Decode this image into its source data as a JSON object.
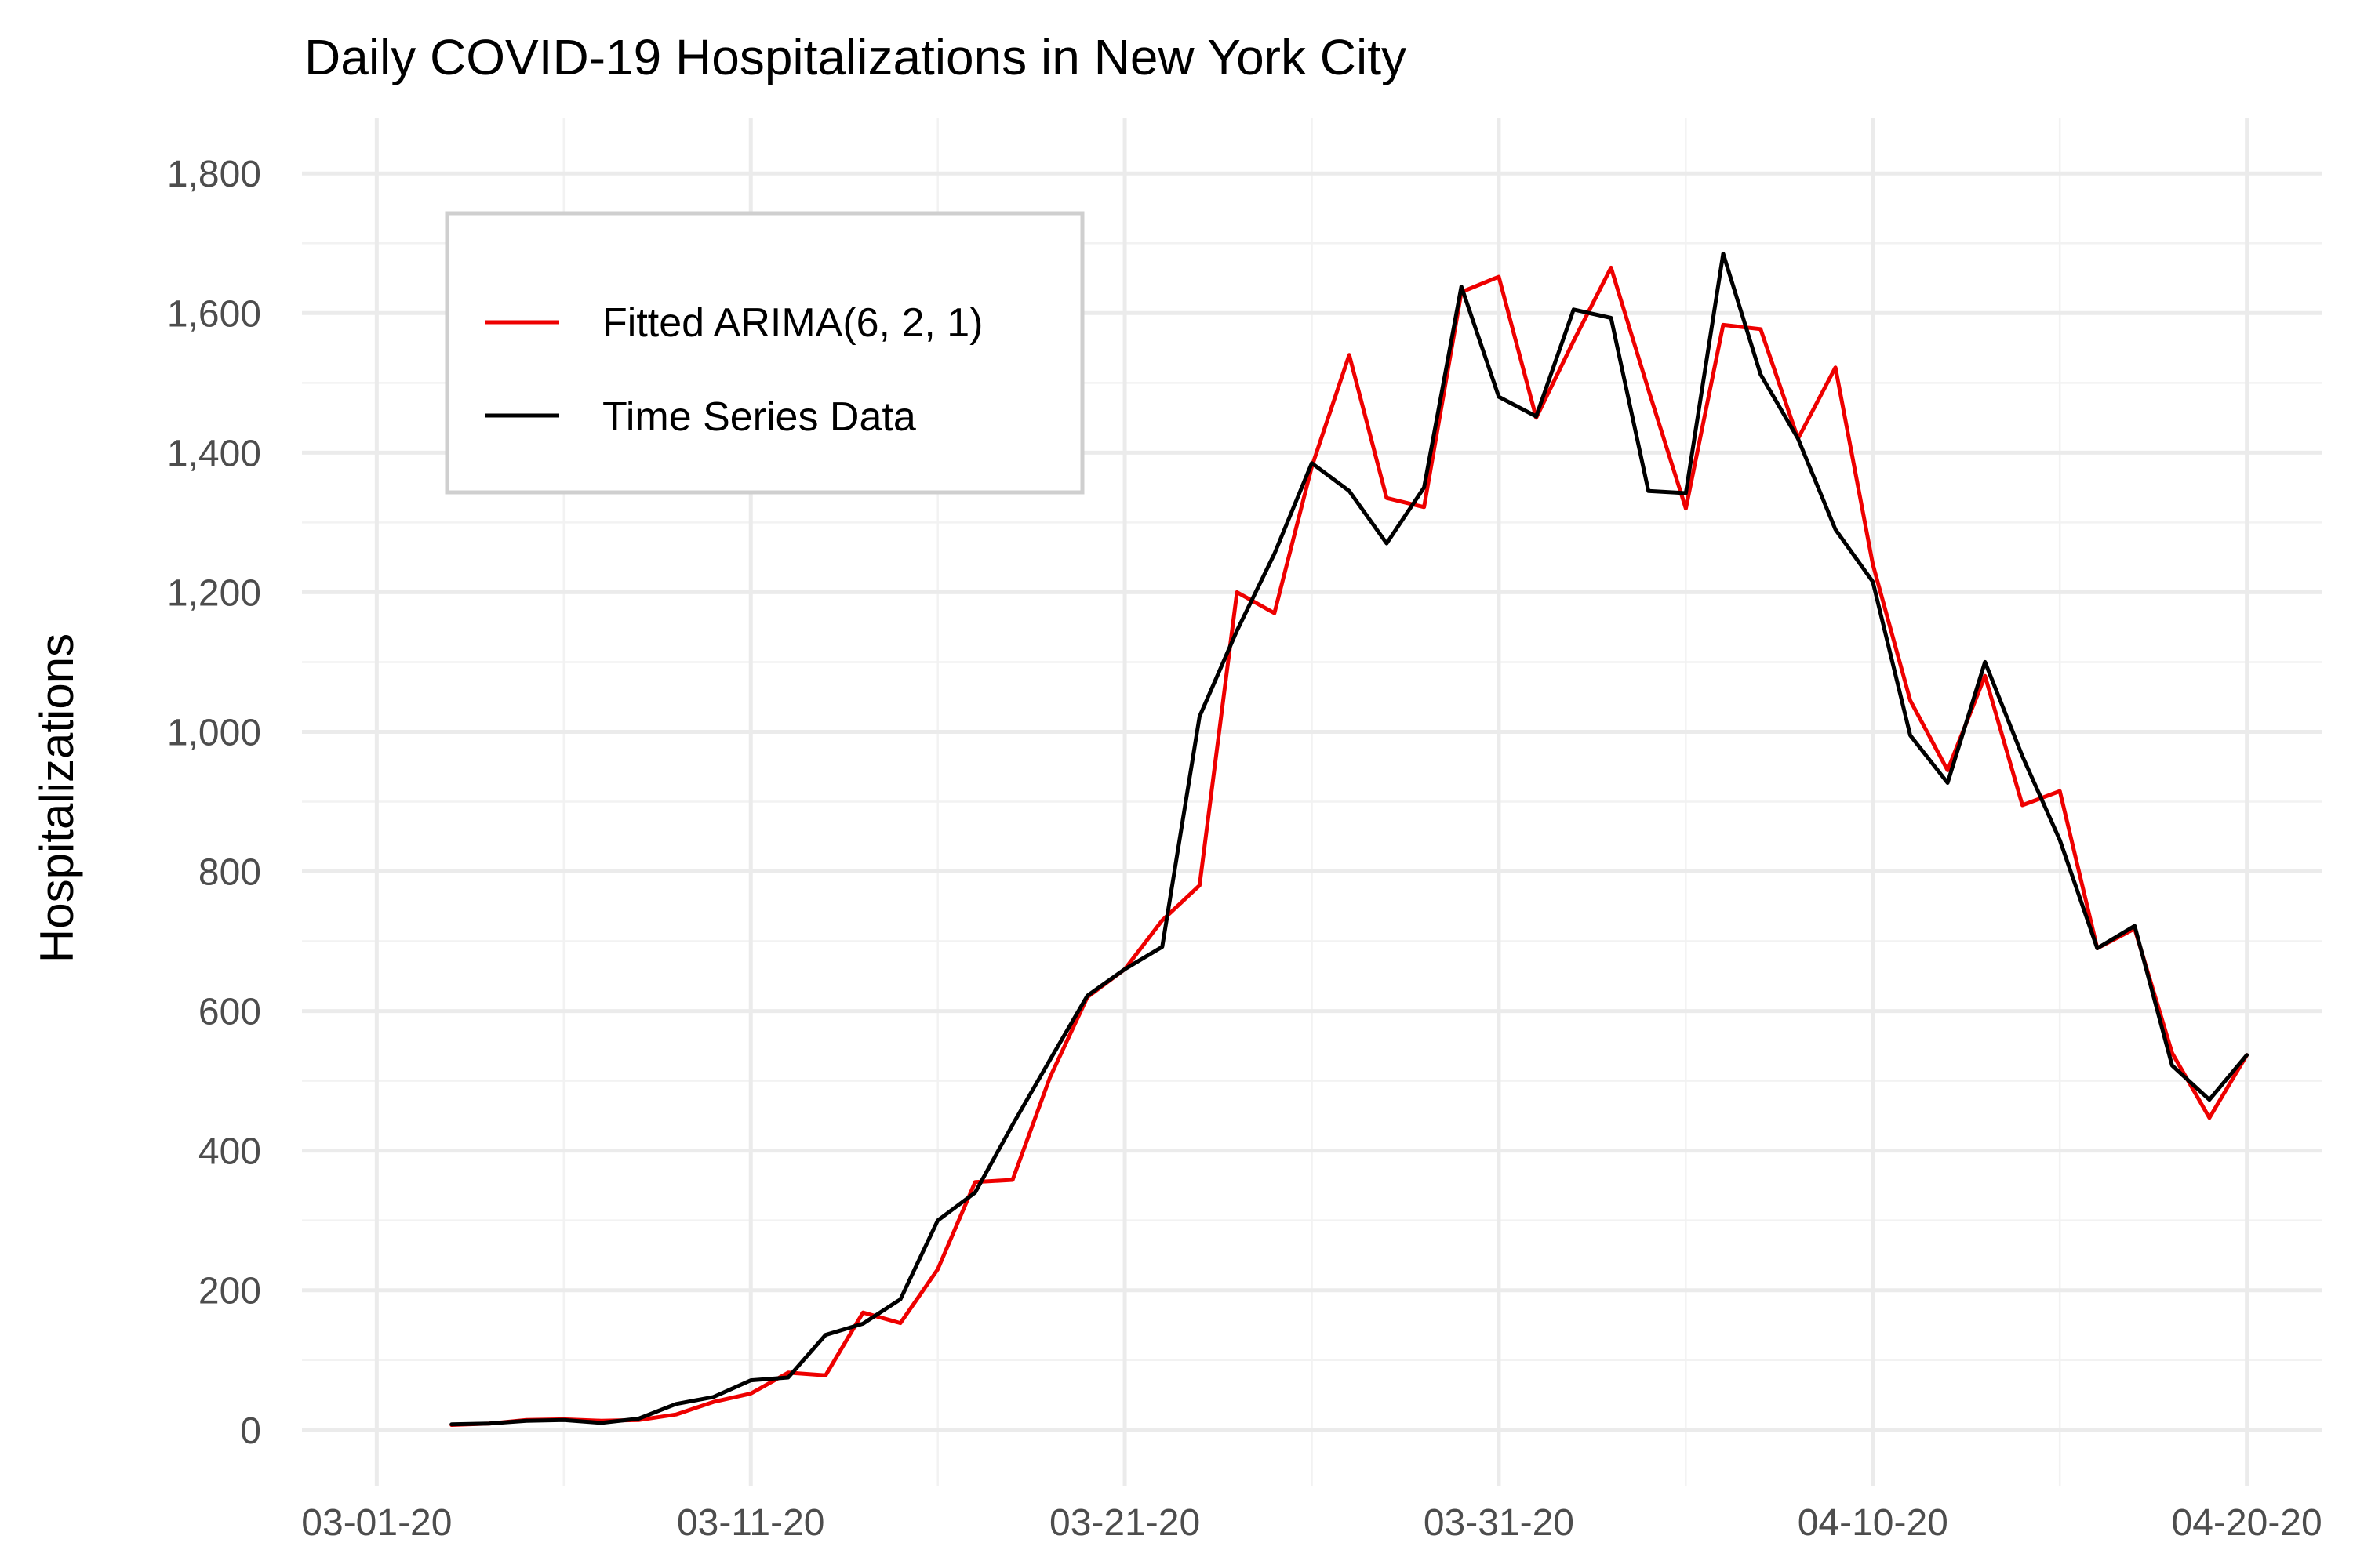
{
  "chart_data": {
    "type": "line",
    "title": "Daily COVID-19 Hospitalizations in New York City",
    "xlabel": "",
    "ylabel": "Hospitalizations",
    "x_start": "2020-02-28",
    "x_end": "2020-04-22",
    "ylim": [
      -80,
      1880
    ],
    "x_ticks": [
      {
        "date": "2020-03-01",
        "label": "03-01-20"
      },
      {
        "date": "2020-03-11",
        "label": "03-11-20"
      },
      {
        "date": "2020-03-21",
        "label": "03-21-20"
      },
      {
        "date": "2020-03-31",
        "label": "03-31-20"
      },
      {
        "date": "2020-04-10",
        "label": "04-10-20"
      },
      {
        "date": "2020-04-20",
        "label": "04-20-20"
      }
    ],
    "y_ticks": [
      {
        "value": 0,
        "label": "0"
      },
      {
        "value": 200,
        "label": "200"
      },
      {
        "value": 400,
        "label": "400"
      },
      {
        "value": 600,
        "label": "600"
      },
      {
        "value": 800,
        "label": "800"
      },
      {
        "value": 1000,
        "label": "1,000"
      },
      {
        "value": 1200,
        "label": "1,200"
      },
      {
        "value": 1400,
        "label": "1,400"
      },
      {
        "value": 1600,
        "label": "1,600"
      },
      {
        "value": 1800,
        "label": "1,800"
      }
    ],
    "grid": true,
    "legend_position": "top-left",
    "x": [
      "2020-03-03",
      "2020-03-04",
      "2020-03-05",
      "2020-03-06",
      "2020-03-07",
      "2020-03-08",
      "2020-03-09",
      "2020-03-10",
      "2020-03-11",
      "2020-03-12",
      "2020-03-13",
      "2020-03-14",
      "2020-03-15",
      "2020-03-16",
      "2020-03-17",
      "2020-03-18",
      "2020-03-19",
      "2020-03-20",
      "2020-03-21",
      "2020-03-22",
      "2020-03-23",
      "2020-03-24",
      "2020-03-25",
      "2020-03-26",
      "2020-03-27",
      "2020-03-28",
      "2020-03-29",
      "2020-03-30",
      "2020-03-31",
      "2020-04-01",
      "2020-04-02",
      "2020-04-03",
      "2020-04-04",
      "2020-04-05",
      "2020-04-06",
      "2020-04-07",
      "2020-04-08",
      "2020-04-09",
      "2020-04-10",
      "2020-04-11",
      "2020-04-12",
      "2020-04-13",
      "2020-04-14",
      "2020-04-15",
      "2020-04-16",
      "2020-04-17",
      "2020-04-18",
      "2020-04-19",
      "2020-04-20"
    ],
    "series": [
      {
        "name": "Fitted ARIMA(6, 2, 1)",
        "color": "#ee0000",
        "values": [
          7,
          9,
          14,
          15,
          13,
          14,
          22,
          40,
          52,
          82,
          78,
          168,
          153,
          230,
          355,
          358,
          505,
          620,
          660,
          730,
          780,
          1200,
          1170,
          1380,
          1540,
          1335,
          1322,
          1630,
          1652,
          1450,
          1560,
          1665,
          1490,
          1320,
          1583,
          1577,
          1420,
          1522,
          1240,
          1045,
          945,
          1080,
          895,
          915,
          690,
          718,
          540,
          447,
          537
        ]
      },
      {
        "name": "Time Series Data",
        "color": "#000000",
        "values": [
          8,
          9,
          13,
          14,
          10,
          16,
          37,
          47,
          71,
          75,
          136,
          152,
          187,
          300,
          340,
          437,
          530,
          622,
          660,
          692,
          1022,
          1145,
          1255,
          1385,
          1345,
          1270,
          1350,
          1638,
          1480,
          1452,
          1605,
          1593,
          1345,
          1342,
          1685,
          1512,
          1420,
          1290,
          1215,
          995,
          927,
          1100,
          965,
          845,
          690,
          722,
          522,
          473,
          537
        ]
      }
    ]
  }
}
